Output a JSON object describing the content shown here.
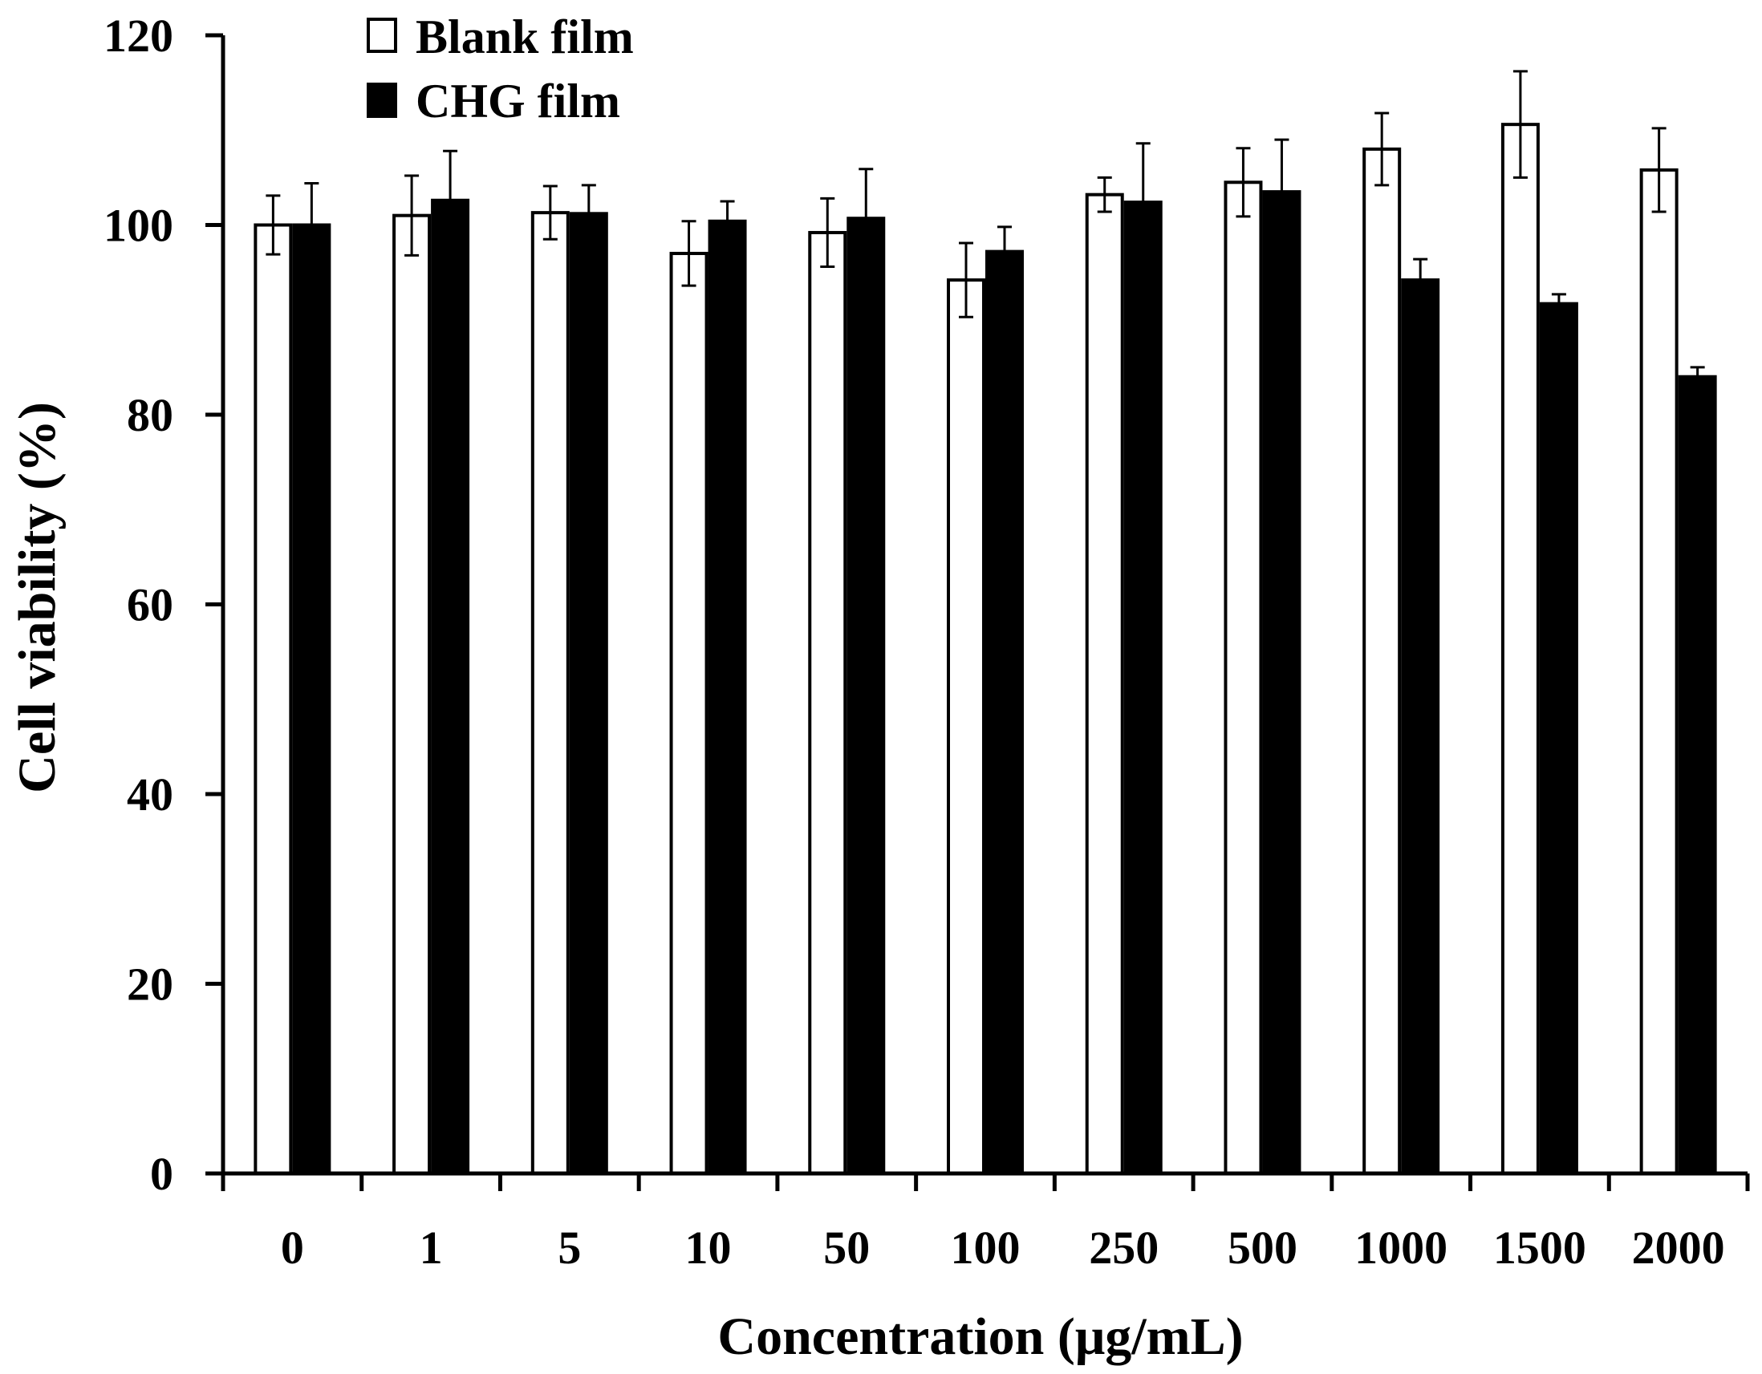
{
  "chart_data": {
    "type": "bar",
    "title": "",
    "xlabel": "Concentration (μg/mL)",
    "ylabel": "Cell viability (%)",
    "ylim": [
      0,
      120
    ],
    "yticks": [
      0,
      20,
      40,
      60,
      80,
      100,
      120
    ],
    "grid": false,
    "legend_position": "top-left",
    "categories": [
      "0",
      "1",
      "5",
      "10",
      "50",
      "100",
      "250",
      "500",
      "1000",
      "1500",
      "2000"
    ],
    "series": [
      {
        "name": "Blank film",
        "fill": "#ffffff",
        "values": [
          100,
          101,
          101.3,
          97,
          99.2,
          94.2,
          103.2,
          104.5,
          108,
          110.6,
          105.8
        ],
        "errors": [
          3.1,
          4.2,
          2.8,
          3.4,
          3.6,
          3.9,
          1.8,
          3.6,
          3.8,
          5.6,
          4.4
        ]
      },
      {
        "name": "CHG film",
        "fill": "#000000",
        "values": [
          100,
          102.6,
          101.2,
          100.4,
          100.7,
          97.2,
          102.4,
          103.5,
          94.2,
          91.7,
          84
        ],
        "errors": [
          4.4,
          5.2,
          3.0,
          2.1,
          5.2,
          2.6,
          6.2,
          5.5,
          2.2,
          1.0,
          1.0
        ]
      }
    ]
  }
}
